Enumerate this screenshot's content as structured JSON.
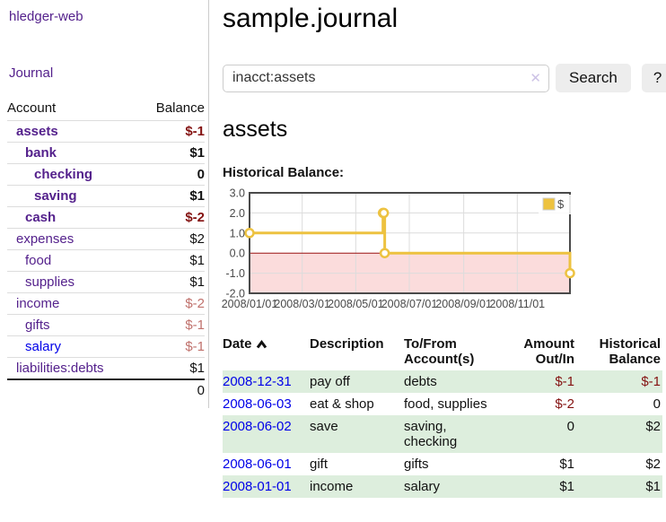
{
  "app": {
    "brand": "hledger-web"
  },
  "sidebar": {
    "journal_link": "Journal",
    "accounts_table": {
      "account_header": "Account",
      "balance_header": "Balance",
      "rows": [
        {
          "name": "assets",
          "balance": "$-1",
          "depth": 1,
          "bold": true,
          "balance_style": "neg-strong",
          "link_style": "purple"
        },
        {
          "name": "bank",
          "balance": "$1",
          "depth": 2,
          "bold": true,
          "balance_style": "normal",
          "link_style": "purple"
        },
        {
          "name": "checking",
          "balance": "0",
          "depth": 3,
          "bold": true,
          "balance_style": "normal",
          "link_style": "purple"
        },
        {
          "name": "saving",
          "balance": "$1",
          "depth": 3,
          "bold": true,
          "balance_style": "normal",
          "link_style": "purple"
        },
        {
          "name": "cash",
          "balance": "$-2",
          "depth": 2,
          "bold": true,
          "balance_style": "neg-strong",
          "link_style": "purple"
        },
        {
          "name": "expenses",
          "balance": "$2",
          "depth": 1,
          "bold": false,
          "balance_style": "normal",
          "link_style": "purple"
        },
        {
          "name": "food",
          "balance": "$1",
          "depth": 2,
          "bold": false,
          "balance_style": "normal",
          "link_style": "purple"
        },
        {
          "name": "supplies",
          "balance": "$1",
          "depth": 2,
          "bold": false,
          "balance_style": "normal",
          "link_style": "purple"
        },
        {
          "name": "income",
          "balance": "$-2",
          "depth": 1,
          "bold": false,
          "balance_style": "neg-dim",
          "link_style": "purple"
        },
        {
          "name": "gifts",
          "balance": "$-1",
          "depth": 2,
          "bold": false,
          "balance_style": "neg-dim",
          "link_style": "purple"
        },
        {
          "name": "salary",
          "balance": "$-1",
          "depth": 2,
          "bold": false,
          "balance_style": "neg-dim",
          "link_style": "blue"
        },
        {
          "name": "liabilities:debts",
          "balance": "$1",
          "depth": 1,
          "bold": false,
          "balance_style": "normal",
          "link_style": "purple"
        }
      ],
      "total": "0"
    }
  },
  "header": {
    "title": "sample.journal"
  },
  "search": {
    "value": "inacct:assets",
    "clear_icon": "✕",
    "button_label": "Search",
    "help_label": "?"
  },
  "account_page": {
    "heading": "assets",
    "chart_label": "Historical Balance:"
  },
  "chart_data": {
    "type": "line",
    "step": true,
    "title": "Historical Balance",
    "series": [
      {
        "name": "$",
        "color": "#edc240",
        "points": [
          [
            "2008-01-01",
            1
          ],
          [
            "2008-06-01",
            2
          ],
          [
            "2008-06-02",
            2
          ],
          [
            "2008-06-03",
            0
          ],
          [
            "2008-12-31",
            -1
          ]
        ]
      }
    ],
    "x_range": [
      "2008-01-01",
      "2008-12-31"
    ],
    "x_ticks": [
      "2008/01/01",
      "2008/03/01",
      "2008/05/01",
      "2008/07/01",
      "2008/09/01",
      "2008/11/01"
    ],
    "y_ticks": [
      3.0,
      2.0,
      1.0,
      0.0,
      -1.0,
      -2.0
    ],
    "ylim": [
      -2,
      3
    ],
    "grid": true,
    "negative_region_color": "#fbdcdc",
    "zero_line_color": "#991111",
    "grid_color": "#dcdcdc",
    "border_color": "#4a4a4a",
    "legend": {
      "label": "$",
      "position": "top-right",
      "swatch_color": "#edc240"
    }
  },
  "transactions": {
    "columns": {
      "date": "Date",
      "description": "Description",
      "tofrom": "To/From Account(s)",
      "amount": "Amount Out/In",
      "balance": "Historical Balance"
    },
    "sort": "date-ascending",
    "rows": [
      {
        "date": "2008-12-31",
        "description": "pay off",
        "tofrom": "debts",
        "amount": "$-1",
        "balance": "$-1",
        "amount_style": "neg-strong",
        "balance_style": "neg-strong"
      },
      {
        "date": "2008-06-03",
        "description": "eat & shop",
        "tofrom": "food, supplies",
        "amount": "$-2",
        "balance": "0",
        "amount_style": "neg-strong",
        "balance_style": "normal"
      },
      {
        "date": "2008-06-02",
        "description": "save",
        "tofrom": "saving,\nchecking",
        "amount": "0",
        "balance": "$2",
        "amount_style": "normal",
        "balance_style": "normal"
      },
      {
        "date": "2008-06-01",
        "description": "gift",
        "tofrom": "gifts",
        "amount": "$1",
        "balance": "$2",
        "amount_style": "normal",
        "balance_style": "normal"
      },
      {
        "date": "2008-01-01",
        "description": "income",
        "tofrom": "salary",
        "amount": "$1",
        "balance": "$1",
        "amount_style": "normal",
        "balance_style": "normal"
      }
    ]
  }
}
